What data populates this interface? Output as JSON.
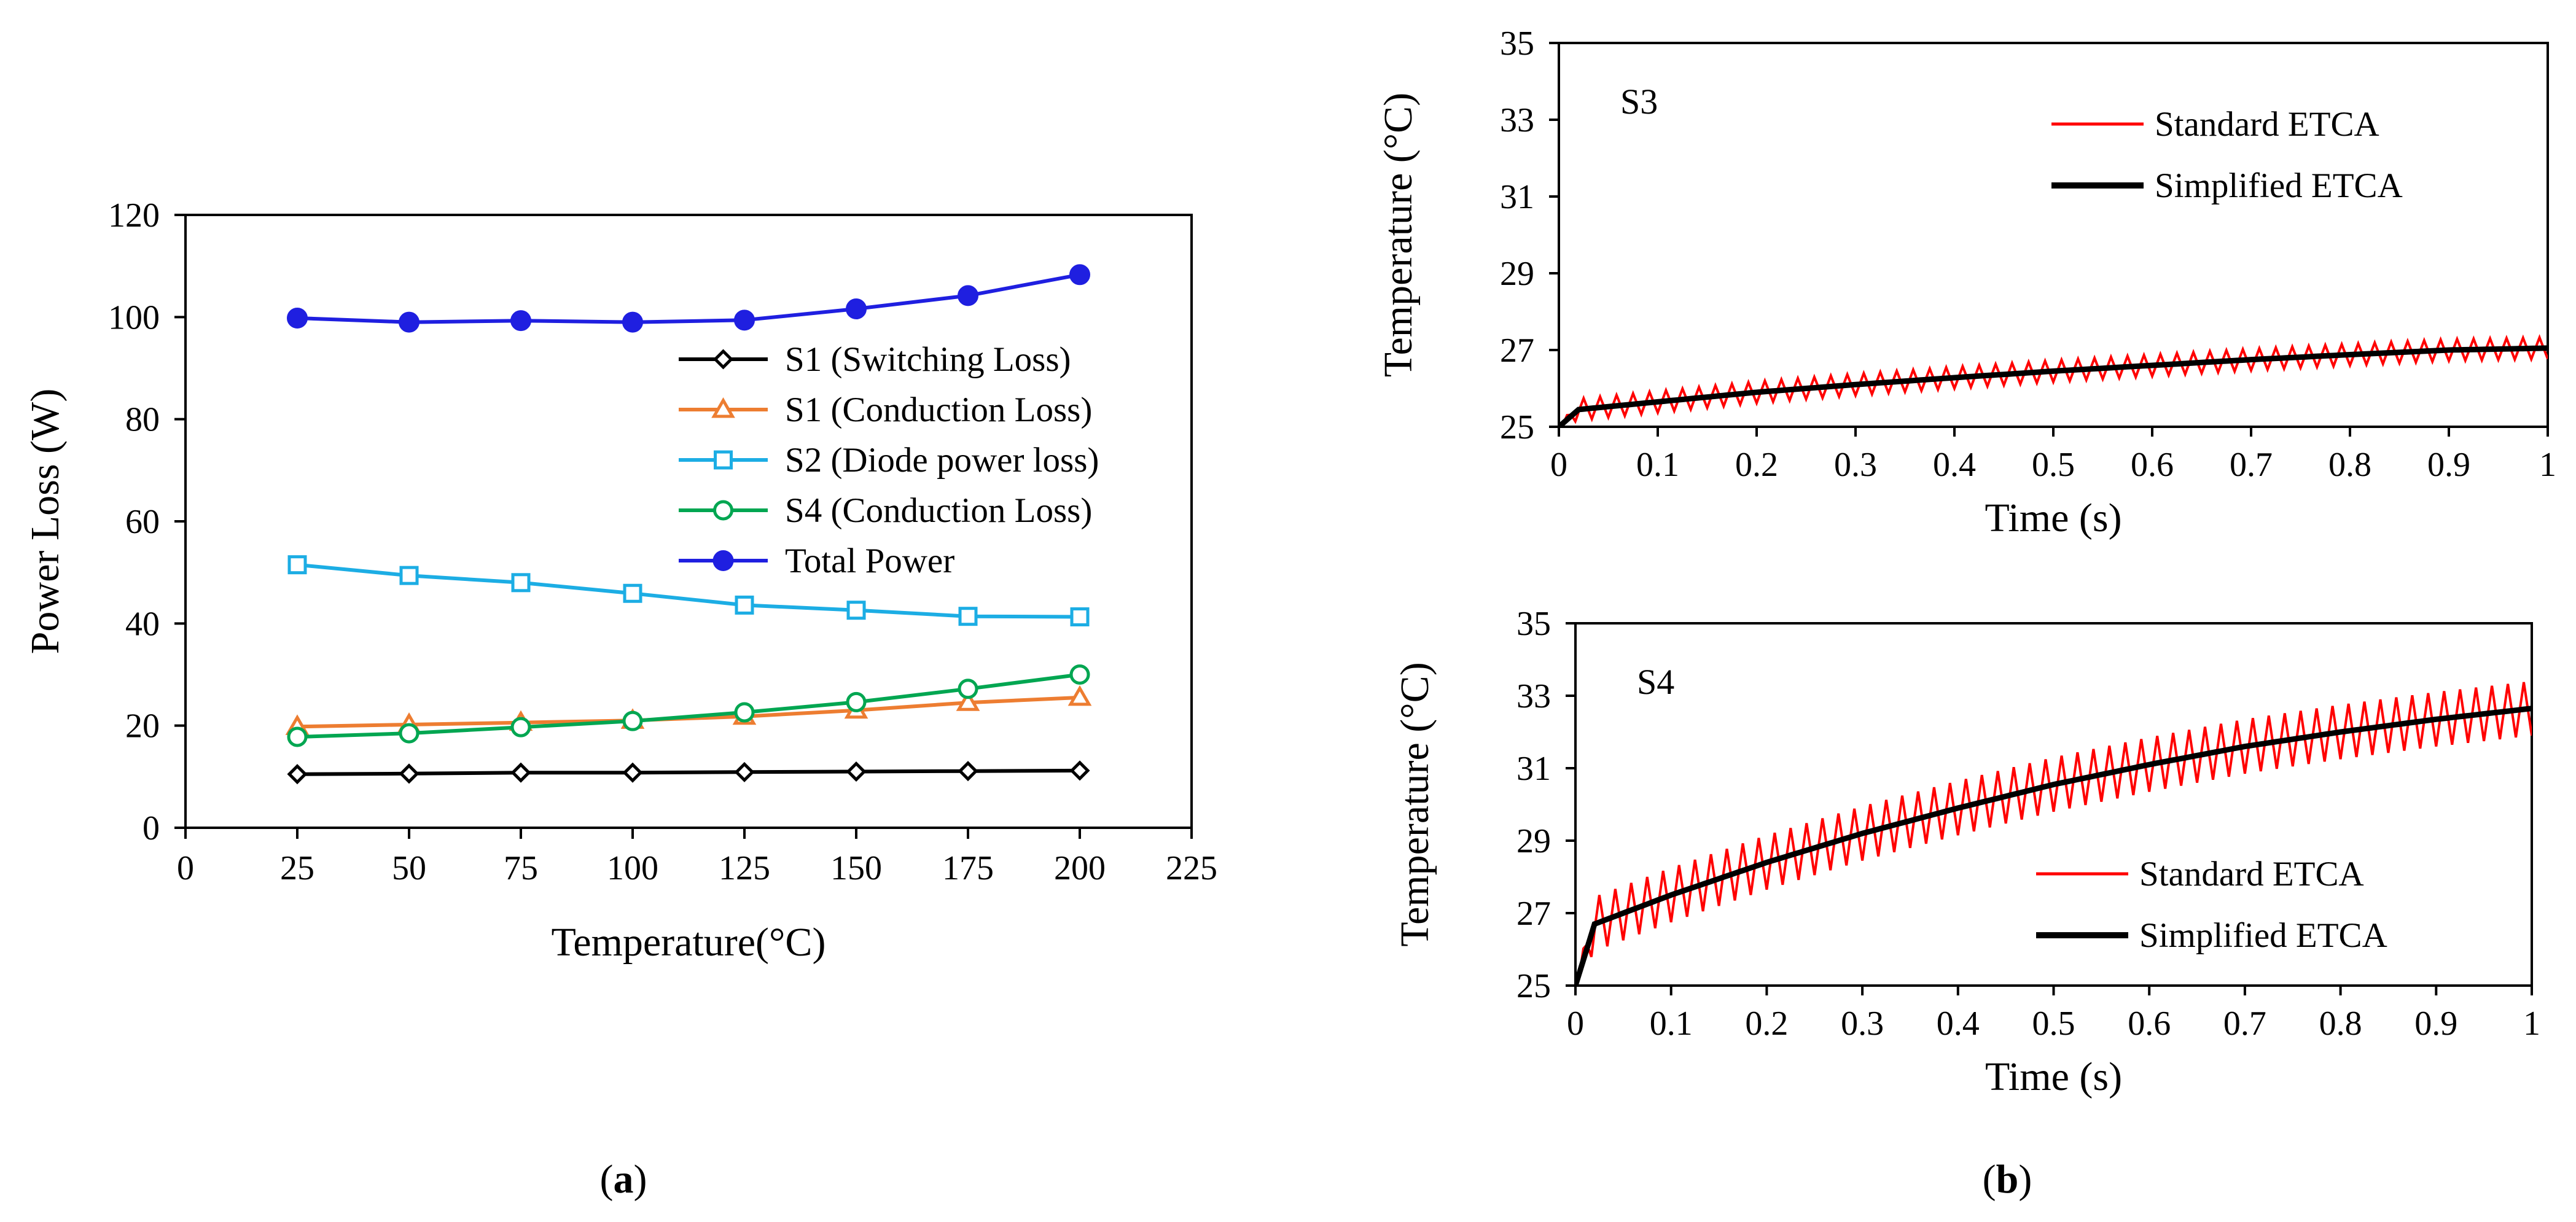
{
  "chart_data": [
    {
      "type": "line",
      "panel": "a",
      "title": "",
      "xlabel": "Temperature(°C)",
      "ylabel": "Power Loss (W)",
      "xlim": [
        0,
        225
      ],
      "ylim": [
        0,
        120
      ],
      "xticks": [
        0,
        25,
        50,
        75,
        100,
        125,
        150,
        175,
        200,
        225
      ],
      "yticks": [
        0,
        20,
        40,
        60,
        80,
        100,
        120
      ],
      "x": [
        25,
        50,
        75,
        100,
        125,
        150,
        175,
        200
      ],
      "legend": "center-right",
      "grid": false,
      "series": [
        {
          "name": "S1 (Switching Loss)",
          "marker": "diamond",
          "color": "#000000",
          "values": [
            10.5,
            10.6,
            10.8,
            10.8,
            10.9,
            11.0,
            11.1,
            11.2
          ]
        },
        {
          "name": "S1 (Conduction Loss)",
          "marker": "triangle",
          "color": "#ED7D31",
          "values": [
            19.8,
            20.2,
            20.6,
            21.0,
            21.8,
            23.0,
            24.5,
            25.5
          ]
        },
        {
          "name": "S2 (Diode power loss)",
          "marker": "square",
          "color": "#1CADE4",
          "values": [
            51.5,
            49.4,
            48.0,
            45.9,
            43.6,
            42.6,
            41.4,
            41.3
          ]
        },
        {
          "name": "S4 (Conduction Loss)",
          "marker": "circle",
          "color": "#00A651",
          "values": [
            17.8,
            18.5,
            19.7,
            20.9,
            22.6,
            24.6,
            27.2,
            30.0
          ]
        },
        {
          "name": "Total Power",
          "marker": "dot",
          "color": "#1F1FE0",
          "values": [
            99.8,
            99.0,
            99.3,
            99.0,
            99.4,
            101.6,
            104.2,
            108.3
          ]
        }
      ]
    },
    {
      "type": "line",
      "panel": "b-top",
      "annotation": "S3",
      "xlabel": "Time (s)",
      "ylabel": "Temperature (°C)",
      "xlim": [
        0,
        1
      ],
      "ylim": [
        25,
        35
      ],
      "xticks": [
        "0",
        "0.1",
        "0.2",
        "0.3",
        "0.4",
        "0.5",
        "0.6",
        "0.7",
        "0.8",
        "0.9",
        "1"
      ],
      "yticks": [
        25,
        27,
        29,
        31,
        33,
        35
      ],
      "legend": "top-right",
      "oscillation_cycles": 60,
      "series": [
        {
          "name": "Standard ETCA",
          "color": "#FF0000",
          "x": [
            0,
            0.02,
            0.1,
            0.2,
            0.3,
            0.4,
            0.5,
            0.6,
            0.7,
            0.8,
            0.9,
            1.0
          ],
          "values": [
            25.0,
            25.45,
            25.65,
            25.9,
            26.1,
            26.28,
            26.45,
            26.6,
            26.75,
            26.88,
            27.0,
            27.05
          ],
          "ripple_amplitude": 0.28
        },
        {
          "name": "Simplified ETCA",
          "color": "#000000",
          "x": [
            0,
            0.02,
            0.1,
            0.2,
            0.3,
            0.4,
            0.5,
            0.6,
            0.7,
            0.8,
            0.9,
            1.0
          ],
          "values": [
            25.0,
            25.45,
            25.65,
            25.9,
            26.1,
            26.28,
            26.45,
            26.6,
            26.75,
            26.88,
            27.0,
            27.05
          ]
        }
      ]
    },
    {
      "type": "line",
      "panel": "b-bottom",
      "annotation": "S4",
      "xlabel": "Time (s)",
      "ylabel": "Temperature (°C)",
      "xlim": [
        0,
        1
      ],
      "ylim": [
        25,
        35
      ],
      "xticks": [
        "0",
        "0.1",
        "0.2",
        "0.3",
        "0.4",
        "0.5",
        "0.6",
        "0.7",
        "0.8",
        "0.9",
        "1"
      ],
      "yticks": [
        25,
        27,
        29,
        31,
        33,
        35
      ],
      "legend": "bottom-right",
      "oscillation_cycles": 60,
      "series": [
        {
          "name": "Standard ETCA",
          "color": "#FF0000",
          "x": [
            0,
            0.02,
            0.1,
            0.2,
            0.3,
            0.4,
            0.5,
            0.6,
            0.7,
            0.8,
            0.9,
            1.0
          ],
          "values": [
            25.0,
            26.7,
            27.5,
            28.4,
            29.2,
            29.9,
            30.55,
            31.1,
            31.6,
            32.0,
            32.35,
            32.65
          ],
          "ripple_amplitude": 0.75
        },
        {
          "name": "Simplified ETCA",
          "color": "#000000",
          "x": [
            0,
            0.02,
            0.1,
            0.2,
            0.3,
            0.4,
            0.5,
            0.6,
            0.7,
            0.8,
            0.9,
            1.0
          ],
          "values": [
            25.0,
            26.7,
            27.5,
            28.4,
            29.2,
            29.9,
            30.55,
            31.1,
            31.6,
            32.0,
            32.35,
            32.65
          ]
        }
      ]
    }
  ],
  "captions": {
    "a": "(a)",
    "b": "(b)"
  }
}
